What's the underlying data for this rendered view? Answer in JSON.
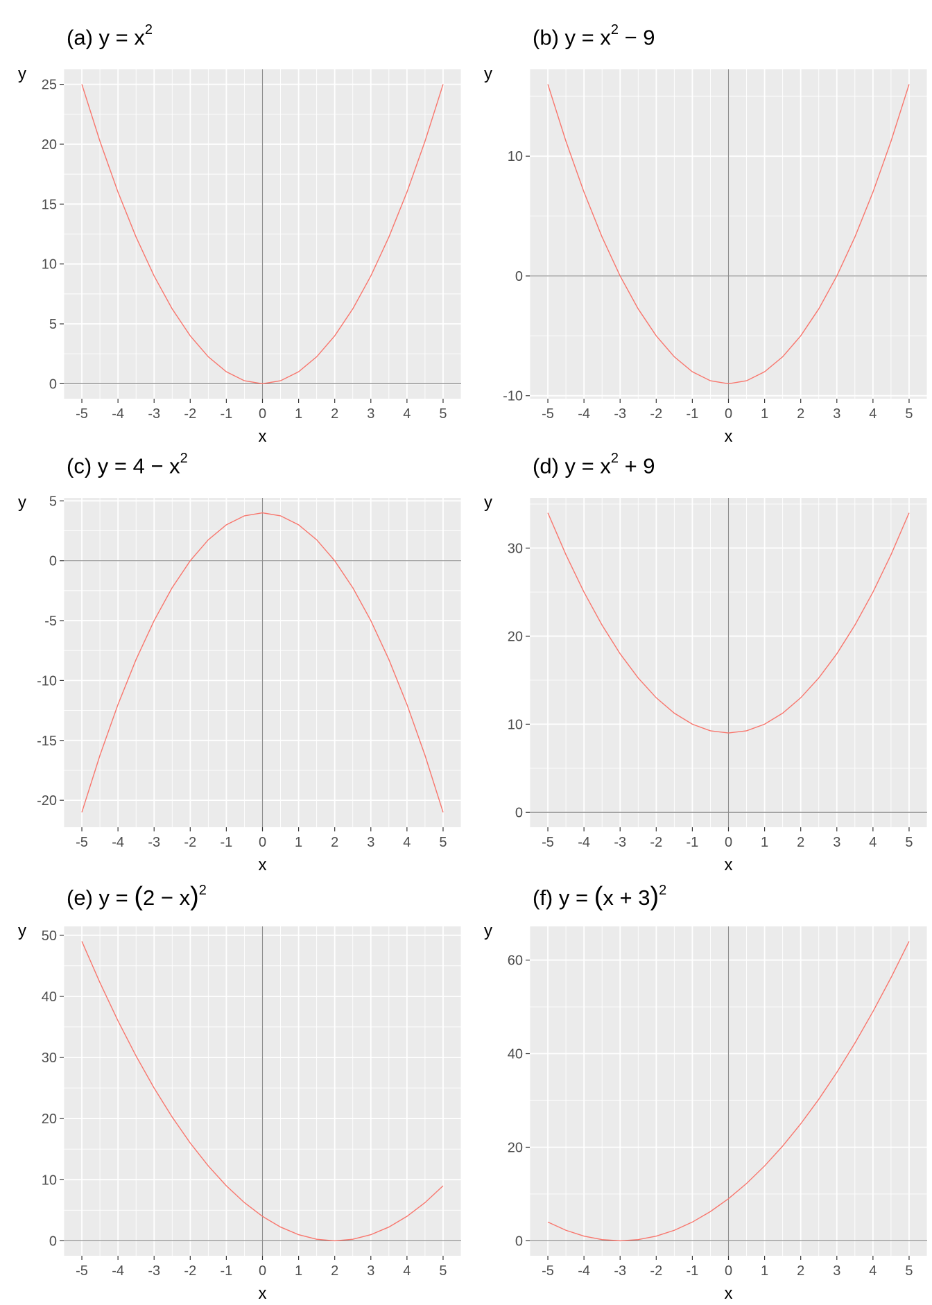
{
  "figure": {
    "panels": [
      {
        "id": "a",
        "title_prefix": "(a) y = ",
        "title_parts": [
          "x",
          "2",
          ""
        ],
        "title_kind": "power",
        "chart_data": {
          "type": "line",
          "title": "(a) y = x^2",
          "xlabel": "x",
          "ylabel": "y",
          "xlim": [
            -5.5,
            5.5
          ],
          "ylim": [
            -1.25,
            26.25
          ],
          "x_ticks": [
            -5,
            -4,
            -3,
            -2,
            -1,
            0,
            1,
            2,
            3,
            4,
            5
          ],
          "y_ticks": [
            0,
            5,
            10,
            15,
            20,
            25
          ],
          "y_minor": [
            2.5,
            7.5,
            12.5,
            17.5,
            22.5
          ],
          "grid": true,
          "line_color": "#F8766D",
          "series": [
            {
              "x": [
                -5,
                -4.5,
                -4,
                -3.5,
                -3,
                -2.5,
                -2,
                -1.5,
                -1,
                -0.5,
                0,
                0.5,
                1,
                1.5,
                2,
                2.5,
                3,
                3.5,
                4,
                4.5,
                5
              ],
              "values": [
                25,
                20.25,
                16,
                12.25,
                9,
                6.25,
                4,
                2.25,
                1,
                0.25,
                0,
                0.25,
                1,
                2.25,
                4,
                6.25,
                9,
                12.25,
                16,
                20.25,
                25
              ]
            }
          ]
        }
      },
      {
        "id": "b",
        "title_prefix": "(b) y = ",
        "title_parts": [
          "x",
          "2",
          " − 9"
        ],
        "title_kind": "power",
        "chart_data": {
          "type": "line",
          "title": "(b) y = x^2 − 9",
          "xlabel": "x",
          "ylabel": "y",
          "xlim": [
            -5.5,
            5.5
          ],
          "ylim": [
            -10.25,
            17.25
          ],
          "x_ticks": [
            -5,
            -4,
            -3,
            -2,
            -1,
            0,
            1,
            2,
            3,
            4,
            5
          ],
          "y_ticks": [
            -10,
            0,
            10
          ],
          "y_minor": [
            -5,
            5,
            15
          ],
          "grid": true,
          "line_color": "#F8766D",
          "series": [
            {
              "x": [
                -5,
                -4.5,
                -4,
                -3.5,
                -3,
                -2.5,
                -2,
                -1.5,
                -1,
                -0.5,
                0,
                0.5,
                1,
                1.5,
                2,
                2.5,
                3,
                3.5,
                4,
                4.5,
                5
              ],
              "values": [
                16,
                11.25,
                7,
                3.25,
                0,
                -2.75,
                -5,
                -6.75,
                -8,
                -8.75,
                -9,
                -8.75,
                -8,
                -6.75,
                -5,
                -2.75,
                0,
                3.25,
                7,
                11.25,
                16
              ]
            }
          ]
        }
      },
      {
        "id": "c",
        "title_prefix": "(c) y = ",
        "title_parts": [
          "4 − x",
          "2",
          ""
        ],
        "title_kind": "power",
        "chart_data": {
          "type": "line",
          "title": "(c) y = 4 − x^2",
          "xlabel": "x",
          "ylabel": "y",
          "xlim": [
            -5.5,
            5.5
          ],
          "ylim": [
            -22.25,
            5.25
          ],
          "x_ticks": [
            -5,
            -4,
            -3,
            -2,
            -1,
            0,
            1,
            2,
            3,
            4,
            5
          ],
          "y_ticks": [
            -20,
            -15,
            -10,
            -5,
            0,
            5
          ],
          "y_minor": [
            -17.5,
            -12.5,
            -7.5,
            -2.5,
            2.5
          ],
          "grid": true,
          "line_color": "#F8766D",
          "series": [
            {
              "x": [
                -5,
                -4.5,
                -4,
                -3.5,
                -3,
                -2.5,
                -2,
                -1.5,
                -1,
                -0.5,
                0,
                0.5,
                1,
                1.5,
                2,
                2.5,
                3,
                3.5,
                4,
                4.5,
                5
              ],
              "values": [
                -21,
                -16.25,
                -12,
                -8.25,
                -5,
                -2.25,
                0,
                1.75,
                3,
                3.75,
                4,
                3.75,
                3,
                1.75,
                0,
                -2.25,
                -5,
                -8.25,
                -12,
                -16.25,
                -21
              ]
            }
          ]
        }
      },
      {
        "id": "d",
        "title_prefix": "(d) y = ",
        "title_parts": [
          "x",
          "2",
          " + 9"
        ],
        "title_kind": "power",
        "chart_data": {
          "type": "line",
          "title": "(d) y = x^2 + 9",
          "xlabel": "x",
          "ylabel": "y",
          "xlim": [
            -5.5,
            5.5
          ],
          "ylim": [
            -1.7,
            35.7
          ],
          "x_ticks": [
            -5,
            -4,
            -3,
            -2,
            -1,
            0,
            1,
            2,
            3,
            4,
            5
          ],
          "y_ticks": [
            0,
            10,
            20,
            30
          ],
          "y_minor": [
            5,
            15,
            25,
            35
          ],
          "grid": true,
          "line_color": "#F8766D",
          "series": [
            {
              "x": [
                -5,
                -4.5,
                -4,
                -3.5,
                -3,
                -2.5,
                -2,
                -1.5,
                -1,
                -0.5,
                0,
                0.5,
                1,
                1.5,
                2,
                2.5,
                3,
                3.5,
                4,
                4.5,
                5
              ],
              "values": [
                34,
                29.25,
                25,
                21.25,
                18,
                15.25,
                13,
                11.25,
                10,
                9.25,
                9,
                9.25,
                10,
                11.25,
                13,
                15.25,
                18,
                21.25,
                25,
                29.25,
                34
              ]
            }
          ]
        }
      },
      {
        "id": "e",
        "title_prefix": "(e) y = ",
        "title_parts": [
          "(",
          "2 − x",
          ")",
          "2"
        ],
        "title_kind": "paren",
        "chart_data": {
          "type": "line",
          "title": "(e) y = (2 − x)^2",
          "xlabel": "x",
          "ylabel": "y",
          "xlim": [
            -5.5,
            5.5
          ],
          "ylim": [
            -2.45,
            51.45
          ],
          "x_ticks": [
            -5,
            -4,
            -3,
            -2,
            -1,
            0,
            1,
            2,
            3,
            4,
            5
          ],
          "y_ticks": [
            0,
            10,
            20,
            30,
            40,
            50
          ],
          "y_minor": [
            5,
            15,
            25,
            35,
            45
          ],
          "grid": true,
          "line_color": "#F8766D",
          "series": [
            {
              "x": [
                -5,
                -4.5,
                -4,
                -3.5,
                -3,
                -2.5,
                -2,
                -1.5,
                -1,
                -0.5,
                0,
                0.5,
                1,
                1.5,
                2,
                2.5,
                3,
                3.5,
                4,
                4.5,
                5
              ],
              "values": [
                49,
                42.25,
                36,
                30.25,
                25,
                20.25,
                16,
                12.25,
                9,
                6.25,
                4,
                2.25,
                1,
                0.25,
                0,
                0.25,
                1,
                2.25,
                4,
                6.25,
                9
              ]
            }
          ]
        }
      },
      {
        "id": "f",
        "title_prefix": "(f) y = ",
        "title_parts": [
          "(",
          "x + 3",
          ")",
          "2"
        ],
        "title_kind": "paren",
        "chart_data": {
          "type": "line",
          "title": "(f) y = (x + 3)^2",
          "xlabel": "x",
          "ylabel": "y",
          "xlim": [
            -5.5,
            5.5
          ],
          "ylim": [
            -3.2,
            67.2
          ],
          "x_ticks": [
            -5,
            -4,
            -3,
            -2,
            -1,
            0,
            1,
            2,
            3,
            4,
            5
          ],
          "y_ticks": [
            0,
            20,
            40,
            60
          ],
          "y_minor": [
            10,
            30,
            50
          ],
          "grid": true,
          "line_color": "#F8766D",
          "series": [
            {
              "x": [
                -5,
                -4.5,
                -4,
                -3.5,
                -3,
                -2.5,
                -2,
                -1.5,
                -1,
                -0.5,
                0,
                0.5,
                1,
                1.5,
                2,
                2.5,
                3,
                3.5,
                4,
                4.5,
                5
              ],
              "values": [
                4,
                2.25,
                1,
                0.25,
                0,
                0.25,
                1,
                2.25,
                4,
                6.25,
                9,
                12.25,
                16,
                20.25,
                25,
                30.25,
                36,
                42.25,
                49,
                56.25,
                64
              ]
            }
          ]
        }
      }
    ]
  }
}
